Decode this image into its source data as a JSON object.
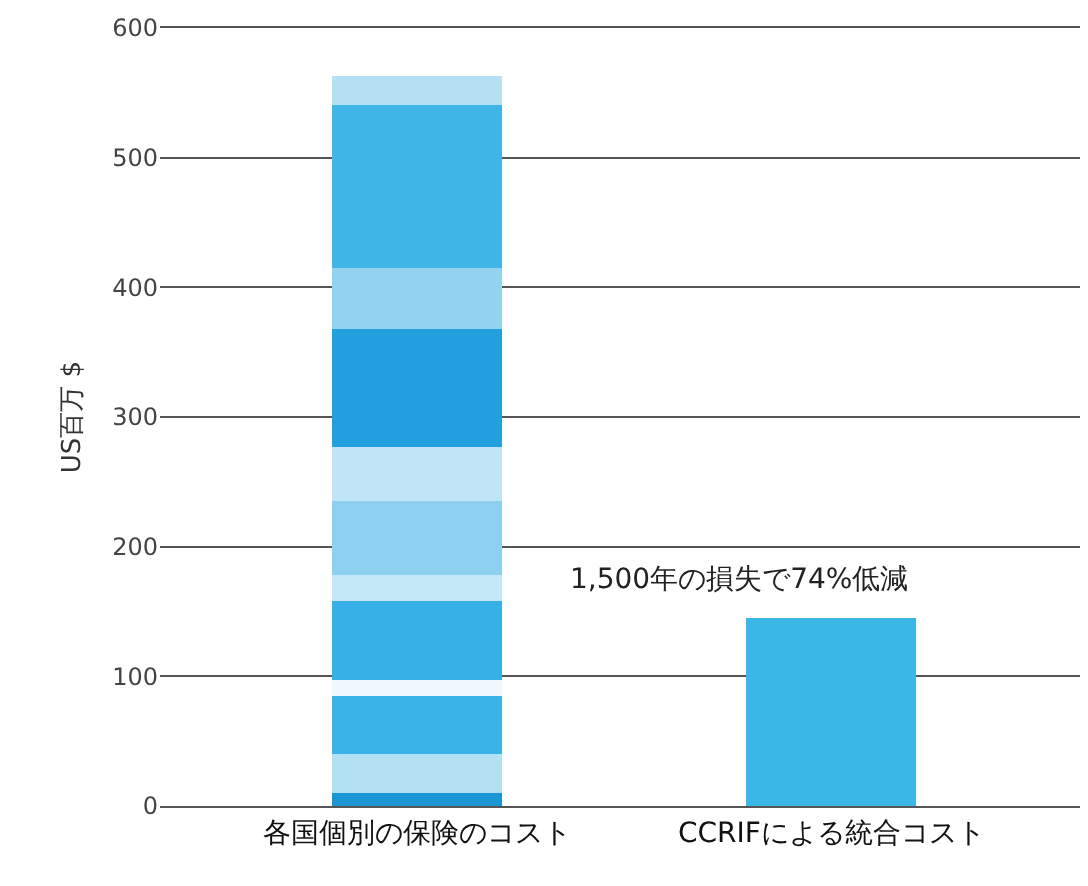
{
  "chart_data": {
    "type": "bar",
    "stacked": true,
    "ylabel": "US百万 $",
    "categories": [
      "各国個別の保険のコスト",
      "CCRIFによる統合コスト"
    ],
    "series": [
      {
        "color": "#1a96d4",
        "values": [
          10,
          null
        ]
      },
      {
        "color": "#b4e0f4",
        "values": [
          30,
          null
        ]
      },
      {
        "color": "#3ab2e6",
        "values": [
          45,
          null
        ]
      },
      {
        "color": "#eef8fd",
        "values": [
          12,
          null
        ]
      },
      {
        "color": "#36b0e6",
        "values": [
          61,
          null
        ]
      },
      {
        "color": "#c4e8f7",
        "values": [
          20,
          null
        ]
      },
      {
        "color": "#8ed0ef",
        "values": [
          57,
          null
        ]
      },
      {
        "color": "#bfe5f6",
        "values": [
          42,
          null
        ]
      },
      {
        "color": "#22a0de",
        "values": [
          91,
          null
        ]
      },
      {
        "color": "#94d3f0",
        "values": [
          47,
          null
        ]
      },
      {
        "color": "#40b6e8",
        "values": [
          126,
          null
        ]
      },
      {
        "color": "#b6e1f5",
        "values": [
          22,
          null
        ]
      },
      {
        "color": "#3cb8e8",
        "values": [
          null,
          145
        ]
      }
    ],
    "ylim": [
      0,
      600
    ],
    "yticks": [
      0,
      100,
      200,
      300,
      400,
      500,
      600
    ],
    "grid": "y",
    "annotations": [
      "1,500年の損失で74%低減"
    ]
  }
}
